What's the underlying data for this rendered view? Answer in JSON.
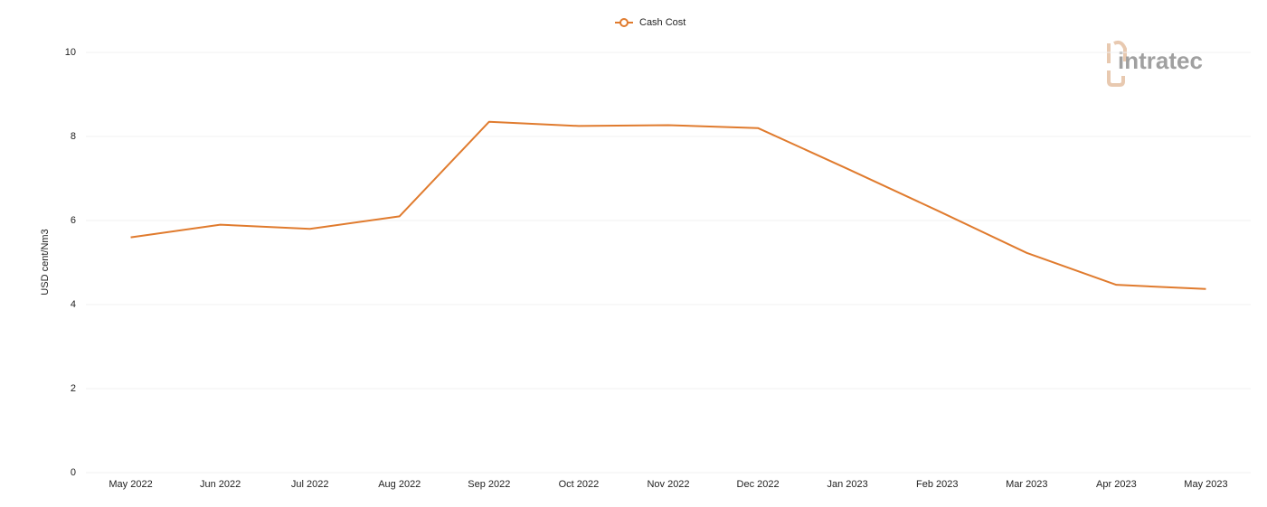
{
  "chart_data": {
    "type": "line",
    "logo": "intratec",
    "y_label": "USD cent/Nm3",
    "categories": [
      "May 2022",
      "Jun 2022",
      "Jul 2022",
      "Aug 2022",
      "Sep 2022",
      "Oct 2022",
      "Nov 2022",
      "Dec 2022",
      "Jan 2023",
      "Feb 2023",
      "Mar 2023",
      "Apr 2023",
      "May 2023"
    ],
    "series": [
      {
        "name": "Cash Cost",
        "color": "#e07b2e",
        "values": [
          5.6,
          5.9,
          5.8,
          6.1,
          8.35,
          8.25,
          8.27,
          8.2,
          7.23,
          6.24,
          5.23,
          4.47,
          4.37
        ]
      }
    ],
    "ylim": [
      0,
      10
    ],
    "yticks": [
      0,
      2,
      4,
      6,
      8,
      10
    ],
    "grid": true,
    "legend": "top"
  }
}
